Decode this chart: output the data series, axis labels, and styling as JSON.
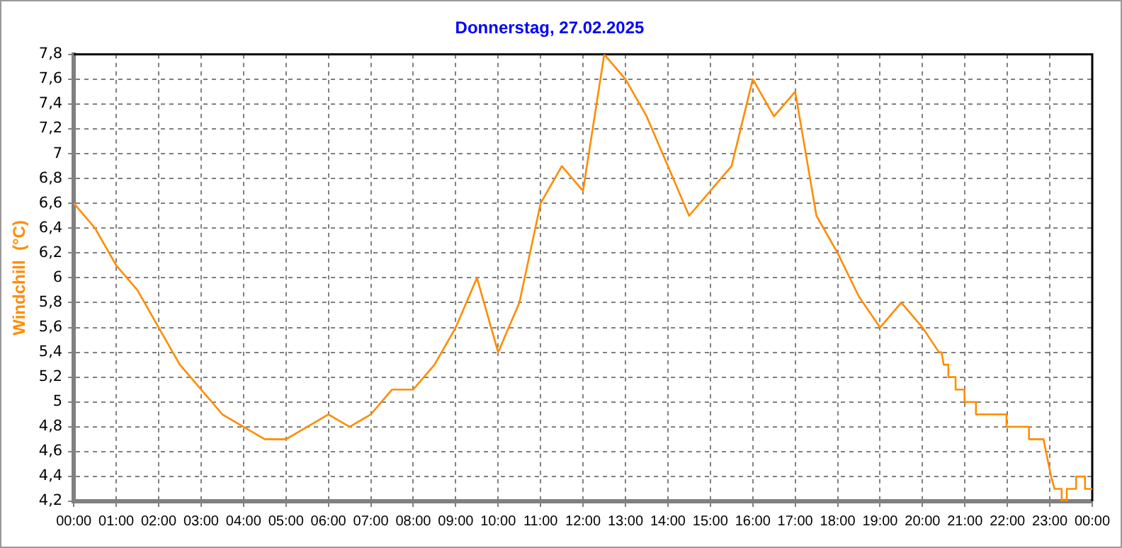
{
  "chart_data": {
    "type": "line",
    "title": "Donnerstag, 27.02.2025",
    "ylabel": "Windchill  (°C)",
    "x": [
      0,
      0.5,
      1,
      1.5,
      2,
      2.5,
      3,
      3.5,
      4,
      4.5,
      5,
      5.5,
      6,
      6.5,
      7,
      7.5,
      8,
      8.5,
      9,
      9.5,
      10,
      10.5,
      11,
      11.5,
      12,
      12.5,
      13,
      13.5,
      14,
      14.5,
      15,
      15.5,
      16,
      16.5,
      17,
      17.5,
      18,
      18.5,
      19,
      19.5,
      20,
      20.39,
      20.45,
      20.5,
      20.61,
      20.61,
      20.78,
      20.78,
      20.99,
      20.99,
      21.26,
      21.26,
      21.98,
      21.98,
      22.51,
      22.51,
      22.85,
      23.03,
      23.11,
      23.28,
      23.28,
      23.4,
      23.4,
      23.62,
      23.62,
      23.83,
      23.83,
      24
    ],
    "series": [
      {
        "color": "#ff8c00",
        "values": [
          6.6,
          6.4,
          6.1,
          5.9,
          5.6,
          5.3,
          5.1,
          4.9,
          4.8,
          4.7,
          4.7,
          4.8,
          4.9,
          4.8,
          4.9,
          5.1,
          5.1,
          5.3,
          5.6,
          6.0,
          5.4,
          5.8,
          6.6,
          6.9,
          6.7,
          7.8,
          7.6,
          7.3,
          6.9,
          6.5,
          6.7,
          6.9,
          7.6,
          7.3,
          7.5,
          6.5,
          6.2,
          5.85,
          5.6,
          5.8,
          5.6,
          5.4,
          5.4,
          5.3,
          5.3,
          5.2,
          5.2,
          5.1,
          5.1,
          5.0,
          5.0,
          4.9,
          4.9,
          4.8,
          4.8,
          4.7,
          4.7,
          4.4,
          4.3,
          4.3,
          4.2,
          4.2,
          4.3,
          4.3,
          4.4,
          4.4,
          4.3,
          4.3
        ]
      }
    ],
    "xlim": [
      0,
      24
    ],
    "xticks": [
      {
        "value": 0,
        "label": "00:00"
      },
      {
        "value": 1,
        "label": "01:00"
      },
      {
        "value": 2,
        "label": "02:00"
      },
      {
        "value": 3,
        "label": "03:00"
      },
      {
        "value": 4,
        "label": "04:00"
      },
      {
        "value": 5,
        "label": "05:00"
      },
      {
        "value": 6,
        "label": "06:00"
      },
      {
        "value": 7,
        "label": "07:00"
      },
      {
        "value": 8,
        "label": "08:00"
      },
      {
        "value": 9,
        "label": "09:00"
      },
      {
        "value": 10,
        "label": "10:00"
      },
      {
        "value": 11,
        "label": "11:00"
      },
      {
        "value": 12,
        "label": "12:00"
      },
      {
        "value": 13,
        "label": "13:00"
      },
      {
        "value": 14,
        "label": "14:00"
      },
      {
        "value": 15,
        "label": "15:00"
      },
      {
        "value": 16,
        "label": "16:00"
      },
      {
        "value": 17,
        "label": "17:00"
      },
      {
        "value": 18,
        "label": "18:00"
      },
      {
        "value": 19,
        "label": "19:00"
      },
      {
        "value": 20,
        "label": "20:00"
      },
      {
        "value": 21,
        "label": "21:00"
      },
      {
        "value": 22,
        "label": "22:00"
      },
      {
        "value": 23,
        "label": "23:00"
      },
      {
        "value": 24,
        "label": "00:00"
      }
    ],
    "ylim": [
      4.2,
      7.8
    ],
    "yticks": [
      {
        "value": 4.2,
        "label": "4,2"
      },
      {
        "value": 4.4,
        "label": "4,4"
      },
      {
        "value": 4.6,
        "label": "4,6"
      },
      {
        "value": 4.8,
        "label": "4,8"
      },
      5,
      {
        "value": 5.2,
        "label": "5,2"
      },
      {
        "value": 5.4,
        "label": "5,4"
      },
      {
        "value": 5.6,
        "label": "5,6"
      },
      {
        "value": 5.8,
        "label": "5,8"
      },
      6,
      {
        "value": 6.2,
        "label": "6,2"
      },
      {
        "value": 6.4,
        "label": "6,4"
      },
      {
        "value": 6.6,
        "label": "6,6"
      },
      {
        "value": 6.8,
        "label": "6,8"
      },
      7,
      {
        "value": 7.2,
        "label": "7,2"
      },
      {
        "value": 7.4,
        "label": "7,4"
      },
      {
        "value": 7.6,
        "label": "7,6"
      },
      {
        "value": 7.8,
        "label": "7,8"
      }
    ],
    "grid": true,
    "legend": false,
    "marker": "none",
    "line_style": "solid"
  }
}
